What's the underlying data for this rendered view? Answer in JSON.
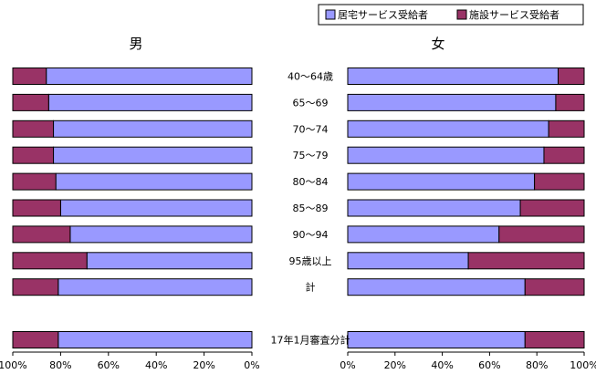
{
  "chart_data": {
    "type": "bar",
    "orientation": "horizontal",
    "stacked": true,
    "normalized": "percent",
    "legend": {
      "position": "top-right",
      "entries": [
        "居宅サービス受給者",
        "施設サービス受給者"
      ]
    },
    "colors": {
      "home": "#9999FF",
      "facility": "#993366"
    },
    "categories": [
      "40～64歳",
      "65～69",
      "70～74",
      "75～79",
      "80～84",
      "85～89",
      "90～94",
      "95歳以上",
      "計",
      "",
      "17年1月審査分計"
    ],
    "panels": [
      {
        "title": "男",
        "x_direction": "reversed",
        "xlim": [
          0,
          100
        ],
        "xticks": [
          "100%",
          "80%",
          "60%",
          "40%",
          "20%",
          "0%"
        ],
        "series": [
          {
            "name": "居宅サービス受給者",
            "values": [
              86,
              85,
              83,
              83,
              82,
              80,
              76,
              69,
              81,
              null,
              81
            ]
          },
          {
            "name": "施設サービス受給者",
            "values": [
              14,
              15,
              17,
              17,
              18,
              20,
              24,
              31,
              19,
              null,
              19
            ]
          }
        ]
      },
      {
        "title": "女",
        "x_direction": "normal",
        "xlim": [
          0,
          100
        ],
        "xticks": [
          "0%",
          "20%",
          "40%",
          "60%",
          "80%",
          "100%"
        ],
        "series": [
          {
            "name": "居宅サービス受給者",
            "values": [
              89,
              88,
              85,
              83,
              79,
              73,
              64,
              51,
              75,
              null,
              75
            ]
          },
          {
            "name": "施設サービス受給者",
            "values": [
              11,
              12,
              15,
              17,
              21,
              27,
              36,
              49,
              25,
              null,
              25
            ]
          }
        ]
      }
    ]
  }
}
